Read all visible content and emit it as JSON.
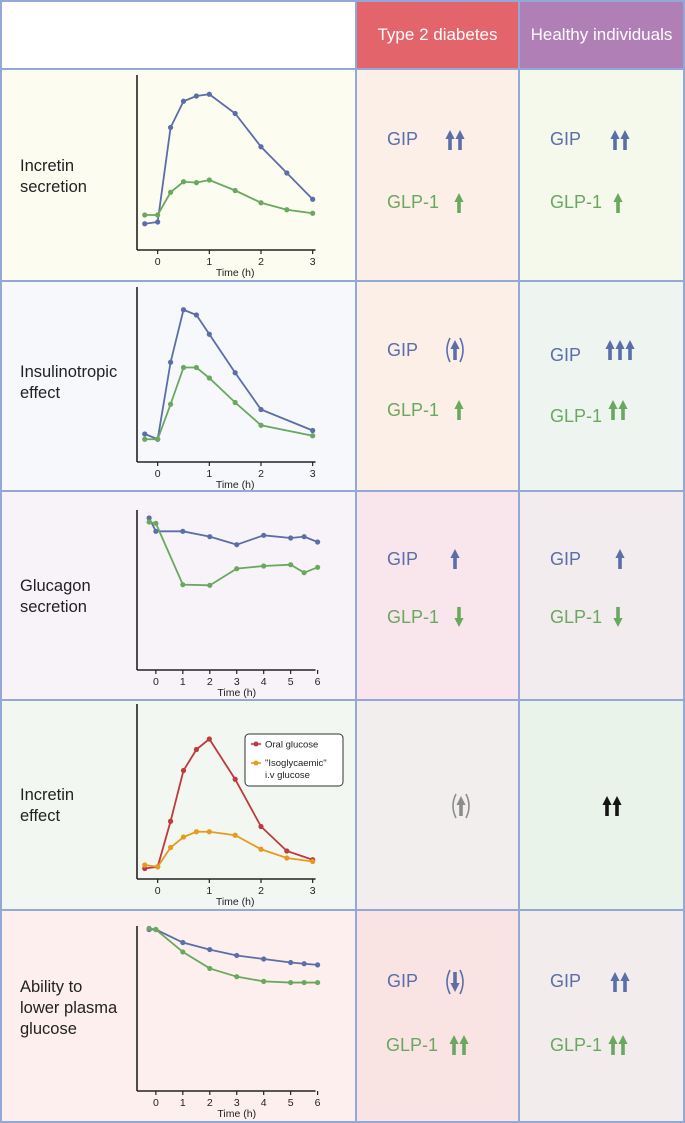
{
  "headers": {
    "t2d": "Type 2 diabetes",
    "healthy": "Healthy individuals"
  },
  "colors": {
    "gip": "#5b6ea8",
    "glp": "#6aa75f",
    "oral": "#c0393b",
    "iv": "#e79a1f",
    "border": "#93a8d4",
    "t2d_header": "#e4646c",
    "healthy_header": "#b07fb6"
  },
  "rows": [
    {
      "label": "Incretin\nsecretion"
    },
    {
      "label": "Insulinotropic\neffect"
    },
    {
      "label": "Glucagon\nsecretion"
    },
    {
      "label": "Incretin\neffect"
    },
    {
      "label": "Ability to\nlower plasma\nglucose"
    }
  ],
  "markers": {
    "gip": "GIP",
    "glp": "GLP-1"
  },
  "effects": {
    "t2d": [
      {
        "gip": "up2",
        "glp": "up1"
      },
      {
        "gip": "up-paren",
        "glp": "up1"
      },
      {
        "gip": "up1",
        "glp": "down1"
      },
      {
        "single": "up-paren-grey"
      },
      {
        "gip": "down-paren",
        "glp": "up2"
      }
    ],
    "healthy": [
      {
        "gip": "up2",
        "glp": "up1"
      },
      {
        "gip": "up3",
        "glp": "up2"
      },
      {
        "gip": "up1",
        "glp": "down1"
      },
      {
        "single": "up2-black"
      },
      {
        "gip": "up2",
        "glp": "up2"
      }
    ]
  },
  "chart_data": [
    {
      "type": "line",
      "xlabel": "Time (h)",
      "xticks": [
        0,
        1,
        2,
        3
      ],
      "xlim": [
        -0.4,
        3.2
      ],
      "ylim": [
        0,
        10
      ],
      "series": [
        {
          "key": "gip",
          "x": [
            -0.25,
            0,
            0.25,
            0.5,
            0.75,
            1,
            1.5,
            2,
            2.5,
            3
          ],
          "y": [
            1.5,
            1.6,
            7.0,
            8.5,
            8.8,
            8.9,
            7.8,
            5.9,
            4.4,
            2.9
          ]
        },
        {
          "key": "glp",
          "x": [
            -0.25,
            0,
            0.25,
            0.5,
            0.75,
            1,
            1.5,
            2,
            2.5,
            3
          ],
          "y": [
            2.0,
            2.0,
            3.3,
            3.9,
            3.85,
            4.0,
            3.4,
            2.7,
            2.3,
            2.1
          ]
        }
      ]
    },
    {
      "type": "line",
      "xlabel": "Time (h)",
      "xticks": [
        0,
        1,
        2,
        3
      ],
      "xlim": [
        -0.4,
        3.2
      ],
      "ylim": [
        0,
        10
      ],
      "series": [
        {
          "key": "gip",
          "x": [
            -0.25,
            0,
            0.25,
            0.5,
            0.75,
            1,
            1.5,
            2,
            3
          ],
          "y": [
            1.6,
            1.3,
            5.7,
            8.7,
            8.4,
            7.3,
            5.1,
            3.0,
            1.8
          ]
        },
        {
          "key": "glp",
          "x": [
            -0.25,
            0,
            0.25,
            0.5,
            0.75,
            1,
            1.5,
            2,
            3
          ],
          "y": [
            1.3,
            1.3,
            3.3,
            5.4,
            5.4,
            4.8,
            3.4,
            2.1,
            1.5
          ]
        }
      ]
    },
    {
      "type": "line",
      "xlabel": "Time (h)",
      "xticks": [
        0,
        1,
        2,
        3,
        4,
        5,
        6
      ],
      "xlim": [
        -0.7,
        6.2
      ],
      "ylim": [
        0,
        10
      ],
      "series": [
        {
          "key": "gip",
          "x": [
            -0.25,
            0,
            1,
            2,
            3,
            4,
            5,
            5.5,
            6
          ],
          "y": [
            9.4,
            8.4,
            8.4,
            8.0,
            7.4,
            8.1,
            7.9,
            8.0,
            7.6
          ]
        },
        {
          "key": "glp",
          "x": [
            -0.25,
            0,
            1,
            2,
            3,
            4,
            5,
            5.5,
            6
          ],
          "y": [
            9.1,
            9.0,
            4.4,
            4.35,
            5.6,
            5.8,
            5.9,
            5.3,
            5.7
          ]
        }
      ]
    },
    {
      "type": "line",
      "xlabel": "Time (h)",
      "xticks": [
        0,
        1,
        2,
        3
      ],
      "xlim": [
        -0.4,
        3.2
      ],
      "ylim": [
        0,
        10
      ],
      "legend": [
        "Oral glucose",
        "\"Isoglycaemic\" i.v glucose"
      ],
      "series": [
        {
          "key": "oral",
          "name": "Oral glucose",
          "x": [
            -0.25,
            0,
            0.25,
            0.5,
            0.75,
            1,
            1.5,
            2,
            2.5,
            3
          ],
          "y": [
            0.6,
            0.7,
            3.3,
            6.2,
            7.4,
            8.0,
            5.7,
            3.0,
            1.6,
            1.1
          ]
        },
        {
          "key": "iv",
          "name": "\"Isoglycaemic\" i.v glucose",
          "x": [
            -0.25,
            0,
            0.25,
            0.5,
            0.75,
            1,
            1.5,
            2,
            2.5,
            3
          ],
          "y": [
            0.8,
            0.7,
            1.8,
            2.4,
            2.7,
            2.7,
            2.5,
            1.7,
            1.2,
            1.0
          ]
        }
      ]
    },
    {
      "type": "line",
      "xlabel": "Time (h)",
      "xticks": [
        0,
        1,
        2,
        3,
        4,
        5,
        6
      ],
      "xlim": [
        -0.7,
        6.2
      ],
      "ylim": [
        0,
        10
      ],
      "series": [
        {
          "key": "gip",
          "x": [
            -0.25,
            0,
            1,
            2,
            3,
            4,
            5,
            5.5,
            6
          ],
          "y": [
            9.7,
            9.7,
            8.6,
            8.0,
            7.5,
            7.2,
            6.9,
            6.8,
            6.7
          ]
        },
        {
          "key": "glp",
          "x": [
            -0.25,
            0,
            1,
            2,
            3,
            4,
            5,
            5.5,
            6
          ],
          "y": [
            9.8,
            9.7,
            7.8,
            6.4,
            5.7,
            5.3,
            5.2,
            5.2,
            5.2
          ]
        }
      ]
    }
  ]
}
